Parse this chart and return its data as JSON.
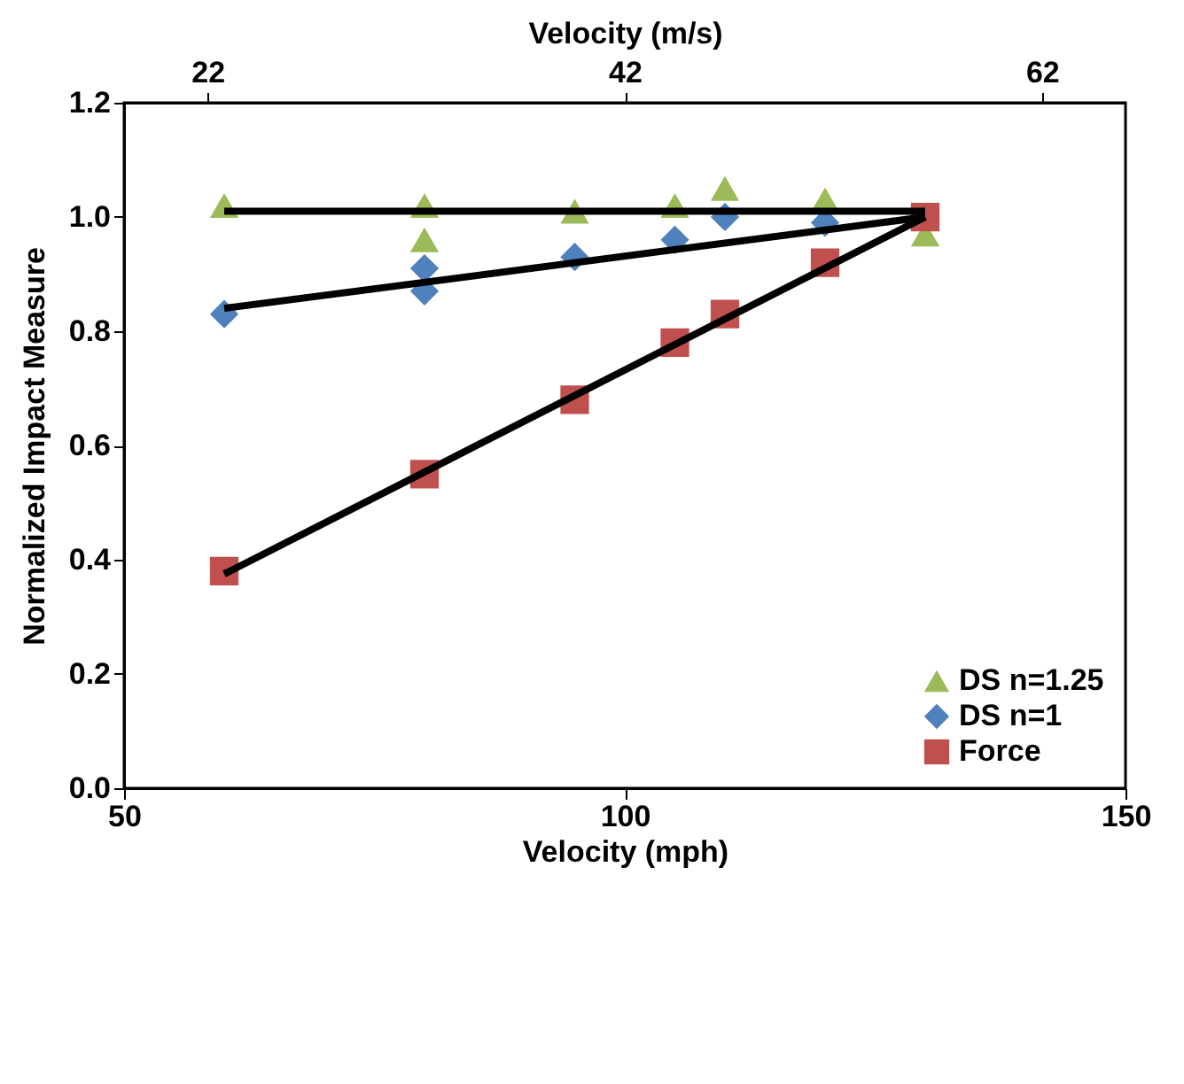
{
  "chart_data": {
    "type": "scatter",
    "xlabel": "Velocity (mph)",
    "ylabel": "Normalized Impact Measure",
    "x2label": "Velocity (m/s)",
    "xlim": [
      50,
      150
    ],
    "xticks": [
      50,
      100,
      150
    ],
    "x2lim": [
      18,
      66
    ],
    "x2ticks": [
      22,
      42,
      62
    ],
    "ylim": [
      0,
      1.2
    ],
    "yticks": [
      {
        "value": 0,
        "label": "0.0"
      },
      0.2,
      0.4,
      0.6,
      0.8,
      {
        "value": 1,
        "label": "1.0"
      },
      1.2
    ],
    "grid": false,
    "legend": "bottom right",
    "series": [
      {
        "name": "DS n=1.25",
        "color": "#9bbb59",
        "marker": "triangle",
        "x": [
          60,
          80,
          80,
          95,
          105,
          110,
          120,
          130
        ],
        "values": [
          1.02,
          1.02,
          0.96,
          1.01,
          1.02,
          1.05,
          1.03,
          0.97
        ]
      },
      {
        "name": "DS n=1",
        "color": "#4f81bd",
        "marker": "diamond",
        "x": [
          60,
          80,
          80,
          95,
          105,
          110,
          120
        ],
        "values": [
          0.83,
          0.91,
          0.87,
          0.93,
          0.96,
          1.0,
          0.99
        ]
      },
      {
        "name": "Force",
        "color": "#c0504d",
        "marker": "square",
        "x": [
          60,
          80,
          95,
          105,
          110,
          120,
          130
        ],
        "values": [
          0.38,
          0.55,
          0.68,
          0.78,
          0.83,
          0.92,
          1.0
        ]
      },
      {
        "type": "line",
        "color": "#000000",
        "marker": "none",
        "x": [
          60,
          130
        ],
        "values": [
          1.01,
          1.01
        ]
      },
      {
        "type": "line",
        "color": "#000000",
        "marker": "none",
        "x": [
          60,
          130
        ],
        "values": [
          0.84,
          1.0
        ]
      },
      {
        "type": "line",
        "color": "#000000",
        "marker": "none",
        "x": [
          60,
          130
        ],
        "values": [
          0.375,
          1.0
        ]
      }
    ]
  }
}
